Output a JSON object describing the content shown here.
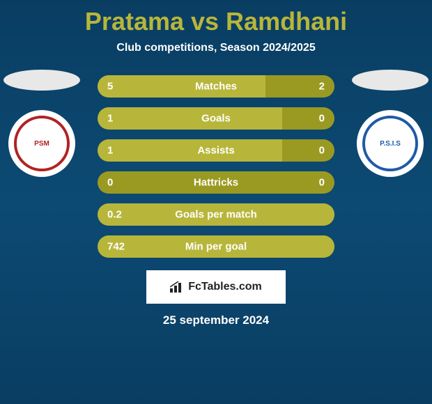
{
  "title": "Pratama vs Ramdhani",
  "subtitle": "Club competitions, Season 2024/2025",
  "colors": {
    "title": "#b8b63a",
    "bg_gradient_top": "#0a3d62",
    "bg_gradient_bottom": "#0a3d62",
    "bar_fill": "#b8b63a",
    "bar_track": "#9a9a22",
    "club_left_border": "#b22222",
    "club_right_border": "#1e5aa8"
  },
  "clubs": {
    "left": {
      "short": "PSM"
    },
    "right": {
      "short": "P.S.I.S"
    }
  },
  "stats": [
    {
      "label": "Matches",
      "left_val": "5",
      "right_val": "2",
      "left_pct": 71,
      "right_pct": 0
    },
    {
      "label": "Goals",
      "left_val": "1",
      "right_val": "0",
      "left_pct": 78,
      "right_pct": 0
    },
    {
      "label": "Assists",
      "left_val": "1",
      "right_val": "0",
      "left_pct": 78,
      "right_pct": 0
    },
    {
      "label": "Hattricks",
      "left_val": "0",
      "right_val": "0",
      "left_pct": 0,
      "right_pct": 0
    },
    {
      "label": "Goals per match",
      "left_val": "0.2",
      "right_val": "",
      "left_pct": 100,
      "right_pct": 0
    },
    {
      "label": "Min per goal",
      "left_val": "742",
      "right_val": "",
      "left_pct": 100,
      "right_pct": 0
    }
  ],
  "brand": "FcTables.com",
  "date": "25 september 2024"
}
